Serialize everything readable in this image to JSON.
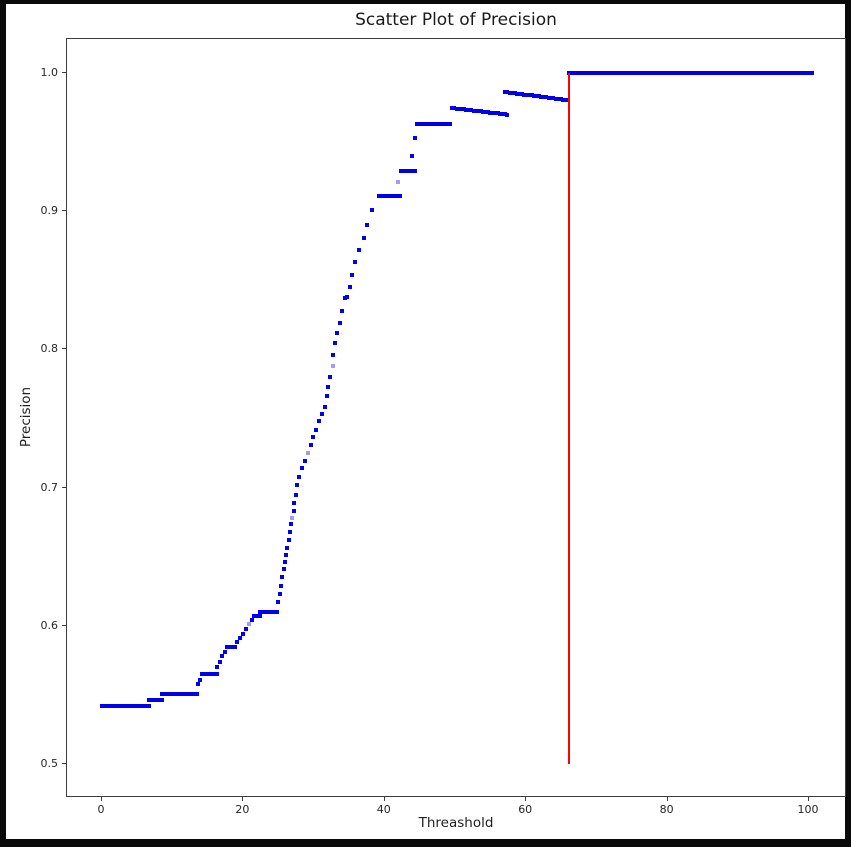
{
  "figure": {
    "title": "Scatter Plot of Precision",
    "xlabel": "Threashold",
    "ylabel": "Precision"
  },
  "chart_data": {
    "type": "scatter",
    "title": "Scatter Plot of Precision",
    "xlabel": "Threashold",
    "ylabel": "Precision",
    "xlim": [
      -5,
      105.4
    ],
    "ylim": [
      0.475,
      1.025
    ],
    "x_ticks": [
      0,
      20,
      40,
      60,
      80,
      100
    ],
    "y_ticks": [
      0.5,
      0.6,
      0.7,
      0.8,
      0.9,
      1.0
    ],
    "grid": false,
    "legend": null,
    "point_color": "#0000ee",
    "marker_px": 4,
    "series_note": "precision vs threshold; flat/sloped runs of contiguous points plus individual step points",
    "runs": [
      {
        "x1": 0.0,
        "x2": 6.6,
        "y1": 0.542,
        "y2": 0.542
      },
      {
        "x1": 6.6,
        "x2": 8.5,
        "y1": 0.546,
        "y2": 0.546
      },
      {
        "x1": 8.5,
        "x2": 13.4,
        "y1": 0.551,
        "y2": 0.551
      },
      {
        "x1": 14.2,
        "x2": 16.3,
        "y1": 0.565,
        "y2": 0.565
      },
      {
        "x1": 17.7,
        "x2": 18.8,
        "y1": 0.585,
        "y2": 0.585
      },
      {
        "x1": 21.5,
        "x2": 22.3,
        "y1": 0.607,
        "y2": 0.607
      },
      {
        "x1": 22.4,
        "x2": 24.8,
        "y1": 0.61,
        "y2": 0.61
      },
      {
        "x1": 39.2,
        "x2": 42.1,
        "y1": 0.911,
        "y2": 0.911
      },
      {
        "x1": 42.3,
        "x2": 44.2,
        "y1": 0.929,
        "y2": 0.929
      },
      {
        "x1": 44.6,
        "x2": 49.2,
        "y1": 0.963,
        "y2": 0.963
      },
      {
        "x1": 49.5,
        "x2": 57.3,
        "y1": 0.9747,
        "y2": 0.97
      },
      {
        "x1": 57.0,
        "x2": 65.9,
        "y1": 0.9863,
        "y2": 0.9803
      },
      {
        "x1": 66.0,
        "x2": 100.4,
        "y1": 1.0,
        "y2": 1.0
      }
    ],
    "dots": [
      [
        13.6,
        0.558
      ],
      [
        13.9,
        0.561
      ],
      [
        16.3,
        0.57
      ],
      [
        16.7,
        0.574
      ],
      [
        17.0,
        0.578
      ],
      [
        17.4,
        0.581
      ],
      [
        19.1,
        0.588
      ],
      [
        19.5,
        0.591
      ],
      [
        19.9,
        0.594
      ],
      [
        20.3,
        0.598
      ],
      [
        20.8,
        0.601,
        1
      ],
      [
        21.2,
        0.604
      ],
      [
        24.9,
        0.617
      ],
      [
        25.1,
        0.623
      ],
      [
        25.3,
        0.629
      ],
      [
        25.5,
        0.635
      ],
      [
        25.7,
        0.641
      ],
      [
        25.9,
        0.646
      ],
      [
        26.0,
        0.651
      ],
      [
        26.2,
        0.656
      ],
      [
        26.4,
        0.662
      ],
      [
        26.6,
        0.668
      ],
      [
        26.7,
        0.674
      ],
      [
        26.8,
        0.678,
        1
      ],
      [
        27.1,
        0.683
      ],
      [
        27.2,
        0.689
      ],
      [
        27.4,
        0.695
      ],
      [
        27.6,
        0.702
      ],
      [
        27.9,
        0.708
      ],
      [
        28.3,
        0.714
      ],
      [
        28.7,
        0.719
      ],
      [
        29.2,
        0.725,
        1
      ],
      [
        29.6,
        0.731
      ],
      [
        29.9,
        0.737
      ],
      [
        30.3,
        0.742
      ],
      [
        30.7,
        0.748
      ],
      [
        31.1,
        0.753
      ],
      [
        31.5,
        0.758
      ],
      [
        31.8,
        0.766
      ],
      [
        32.0,
        0.773
      ],
      [
        32.3,
        0.78
      ],
      [
        32.6,
        0.788,
        1
      ],
      [
        32.7,
        0.796
      ],
      [
        32.9,
        0.805
      ],
      [
        33.2,
        0.812
      ],
      [
        33.6,
        0.819
      ],
      [
        33.9,
        0.828
      ],
      [
        34.3,
        0.837
      ],
      [
        34.7,
        0.838
      ],
      [
        35.1,
        0.845
      ],
      [
        35.4,
        0.854
      ],
      [
        35.8,
        0.863
      ],
      [
        36.3,
        0.872
      ],
      [
        37.0,
        0.881
      ],
      [
        37.5,
        0.89
      ],
      [
        38.2,
        0.901
      ],
      [
        41.9,
        0.921,
        1
      ],
      [
        43.9,
        0.94
      ],
      [
        44.2,
        0.953
      ]
    ],
    "vline": {
      "x": 66,
      "y1": 0.5,
      "y2": 1.0,
      "color": "#ff0000"
    }
  }
}
